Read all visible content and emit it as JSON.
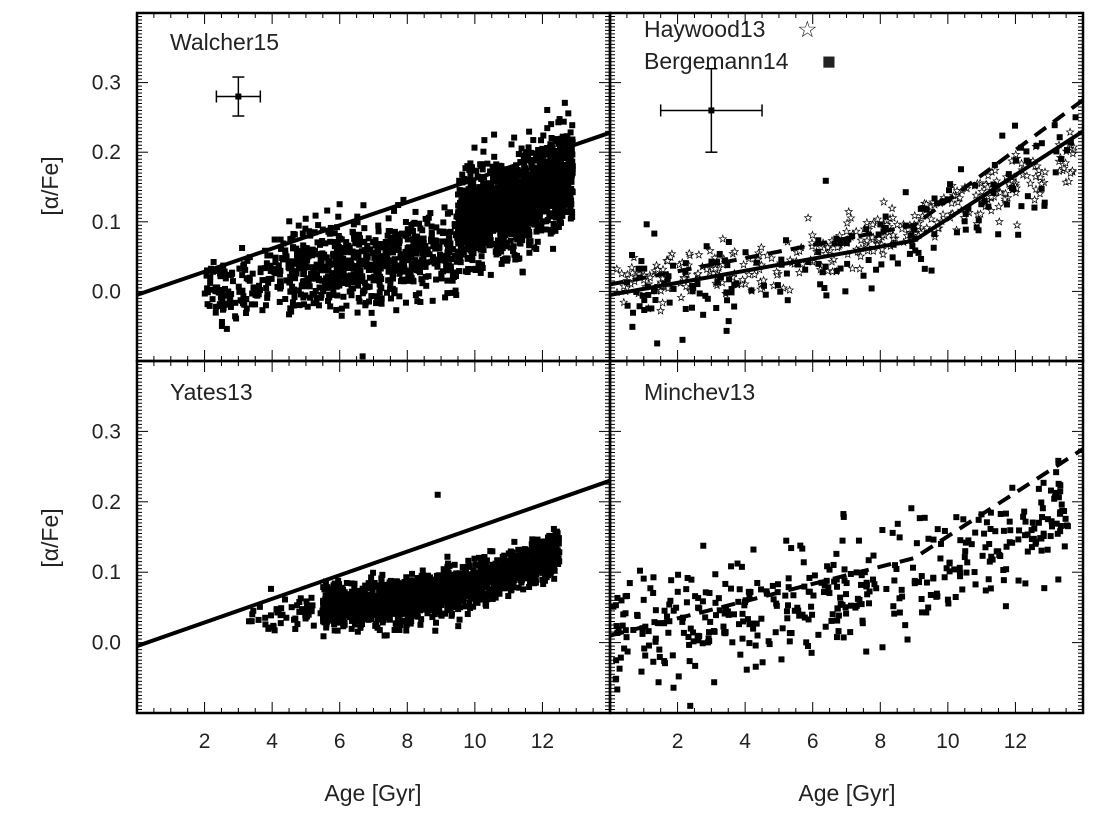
{
  "chart_data": {
    "type": "scatter",
    "xlabel": "Age [Gyr]",
    "ylabel": "[α/Fe]",
    "xlim": [
      0,
      14
    ],
    "ylim": [
      -0.1,
      0.4
    ],
    "x_ticks": [
      "2",
      "4",
      "6",
      "8",
      "10",
      "12"
    ],
    "y_ticks": [
      "0.0",
      "0.1",
      "0.2",
      "0.3"
    ],
    "panels": [
      {
        "label": "Walcher15",
        "position": "top-left",
        "scatter_clouds": [
          {
            "marker": "square",
            "count": 1500,
            "x_range": [
              9.5,
              12.9
            ],
            "center": [
              0.11,
              0.172
            ],
            "spread": 0.055
          },
          {
            "marker": "square",
            "count": 700,
            "x_range": [
              4.5,
              9.5
            ],
            "center": [
              0.035,
              0.06
            ],
            "spread": 0.05
          },
          {
            "marker": "square",
            "count": 150,
            "x_range": [
              2,
              4.5
            ],
            "center": [
              0.0,
              0.03
            ],
            "spread": 0.04
          }
        ],
        "lines": [
          {
            "style": "solid",
            "x": [
              0,
              14
            ],
            "y": [
              -0.005,
              0.228
            ]
          }
        ],
        "error_bar": {
          "x": 3.0,
          "y": 0.28,
          "xerr": 0.65,
          "yerr": 0.028
        }
      },
      {
        "label": "Haywood13 ☆ / Bergemann14 ■",
        "position": "top-right",
        "legend": [
          {
            "name": "Haywood13",
            "marker": "☆"
          },
          {
            "name": "Bergemann14",
            "marker": "■"
          }
        ],
        "scatter_clouds": [
          {
            "marker": "star",
            "count": 350,
            "x_range": [
              0.2,
              13.8
            ],
            "center": [
              0.02,
              0.2
            ],
            "spread": 0.03
          },
          {
            "marker": "square",
            "count": 180,
            "x_range": [
              0.5,
              13.8
            ],
            "center": [
              0.0,
              0.2
            ],
            "spread": 0.06
          }
        ],
        "lines": [
          {
            "style": "solid",
            "x": [
              0,
              9,
              14
            ],
            "y": [
              -0.005,
              0.073,
              0.23
            ]
          },
          {
            "style": "dashed",
            "x": [
              0,
              9,
              14
            ],
            "y": [
              0.01,
              0.095,
              0.275
            ]
          }
        ],
        "error_bar": {
          "x": 3.0,
          "y": 0.26,
          "xerr": 1.5,
          "yerr": 0.06
        }
      },
      {
        "label": "Yates13",
        "position": "bottom-left",
        "scatter_clouds": [
          {
            "marker": "square",
            "count": 1800,
            "x_range": [
              5.5,
              12.5
            ],
            "center": [
              0.05,
              0.13
            ],
            "spread": 0.025
          },
          {
            "marker": "square",
            "count": 50,
            "x_range": [
              3.3,
              5.5
            ],
            "center": [
              0.035,
              0.05
            ],
            "spread": 0.02
          }
        ],
        "lines": [
          {
            "style": "solid",
            "x": [
              0,
              14
            ],
            "y": [
              -0.005,
              0.23
            ]
          }
        ],
        "outlier": {
          "x": 8.9,
          "y": 0.21
        }
      },
      {
        "label": "Minchev13",
        "position": "bottom-right",
        "scatter_clouds": [
          {
            "marker": "square",
            "count": 420,
            "x_range": [
              0.1,
              13.6
            ],
            "center": [
              0.03,
              0.19
            ],
            "spread": 0.065
          }
        ],
        "lines": [
          {
            "style": "dashed",
            "x": [
              0,
              9,
              14
            ],
            "y": [
              0.01,
              0.12,
              0.275
            ]
          }
        ]
      }
    ]
  }
}
